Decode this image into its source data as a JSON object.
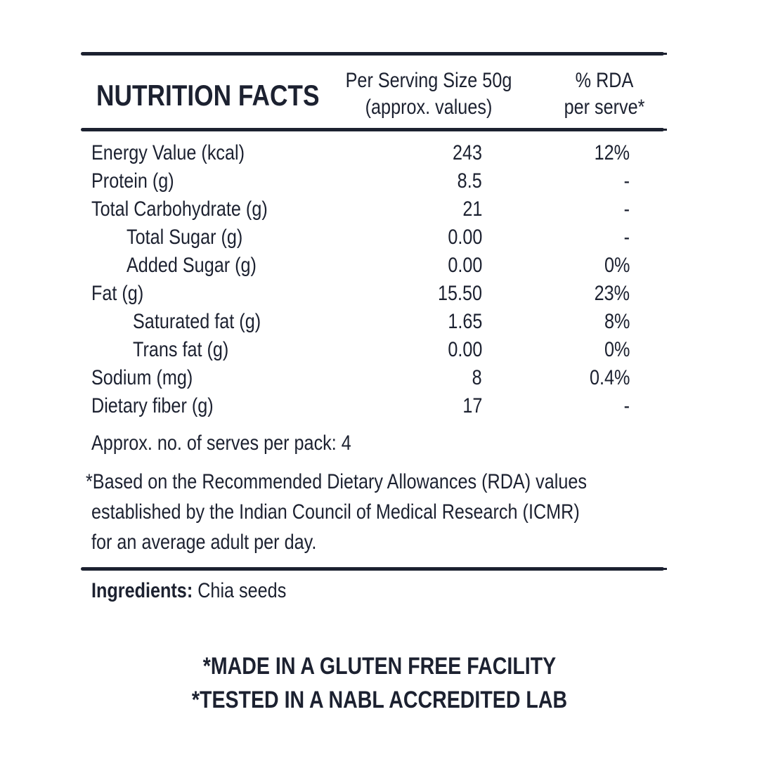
{
  "header": {
    "title": "NUTRITION FACTS",
    "serving_line1": "Per Serving Size 50g",
    "serving_line2": "(approx. values)",
    "rda_line1": "% RDA",
    "rda_line2": "per serve*"
  },
  "rows": [
    {
      "label": "Energy Value (kcal)",
      "value": "243",
      "rda": "12%",
      "indent": 0
    },
    {
      "label": "Protein (g)",
      "value": "8.5",
      "rda": "-",
      "indent": 0
    },
    {
      "label": "Total Carbohydrate (g)",
      "value": "21",
      "rda": "-",
      "indent": 0
    },
    {
      "label": "Total Sugar (g)",
      "value": "0.00",
      "rda": "-",
      "indent": 1
    },
    {
      "label": "Added Sugar (g)",
      "value": "0.00",
      "rda": "0%",
      "indent": 1
    },
    {
      "label": "Fat (g)",
      "value": "15.50",
      "rda": "23%",
      "indent": 0
    },
    {
      "label": "Saturated fat (g)",
      "value": "1.65",
      "rda": "8%",
      "indent": 2
    },
    {
      "label": "Trans fat (g)",
      "value": "0.00",
      "rda": "0%",
      "indent": 2
    },
    {
      "label": "Sodium (mg)",
      "value": "8",
      "rda": "0.4%",
      "indent": 0
    },
    {
      "label": "Dietary fiber (g)",
      "value": "17",
      "rda": "-",
      "indent": 0
    }
  ],
  "serves": "Approx. no. of serves per pack: 4",
  "footnote": [
    "*Based on the Recommended Dietary Allowances (RDA) values",
    "established by the Indian Council of Medical Research (ICMR)",
    "for an average adult per day."
  ],
  "ingredients": {
    "label": "Ingredients:",
    "value": "Chia seeds"
  },
  "claims": [
    "*MADE IN A GLUTEN FREE FACILITY",
    "*TESTED IN A NABL ACCREDITED LAB"
  ],
  "colors": {
    "text": "#1c2130"
  }
}
